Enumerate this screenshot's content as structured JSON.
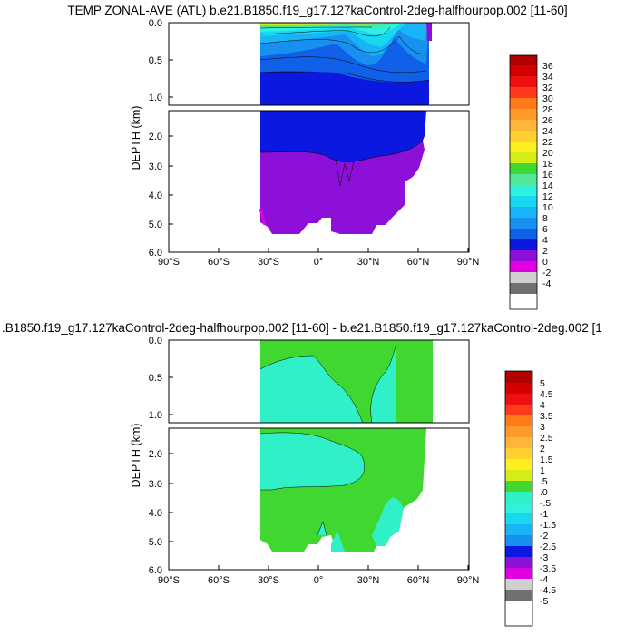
{
  "chart_data": [
    {
      "type": "contour",
      "title": "TEMP ZONAL-AVE (ATL) b.e21.B1850.f19_g17.127kaControl-2deg-halfhourpop.002 [11-60]",
      "ylabel": "DEPTH (km)",
      "x_ticks": [
        "90°S",
        "60°S",
        "30°S",
        "0°",
        "30°N",
        "60°N",
        "90°N"
      ],
      "xlim": [
        -90,
        90
      ],
      "y_ticks_upper": [
        "0.0",
        "0.5",
        "1.0"
      ],
      "y_ticks_lower": [
        "2.0",
        "3.0",
        "4.0",
        "5.0",
        "6.0"
      ],
      "ylim_upper_km": [
        0,
        1.1
      ],
      "ylim_lower_km": [
        1.1,
        6.0
      ],
      "colorbar_labels": [
        "36",
        "34",
        "32",
        "30",
        "28",
        "26",
        "24",
        "22",
        "20",
        "18",
        "16",
        "14",
        "12",
        "10",
        "8",
        "6",
        "4",
        "2",
        "0",
        "-2",
        "-4"
      ],
      "colorbar_colors": [
        "#b00000",
        "#d40000",
        "#ee1010",
        "#ff3a1a",
        "#ff7a18",
        "#ff9a2a",
        "#ffb43a",
        "#ffd030",
        "#ffee20",
        "#d4ec18",
        "#40d830",
        "#50e898",
        "#30f0e0",
        "#18d8f0",
        "#18b4f8",
        "#1890f0",
        "#1060e8",
        "#0a18e0",
        "#8c10d8",
        "#e000e0",
        "#d0d0d0",
        "#707070",
        "#ffffff"
      ]
    },
    {
      "type": "contour",
      "title": ".B1850.f19_g17.127kaControl-2deg-halfhourpop.002 [11-60] - b.e21.B1850.f19_g17.127kaControl-2deg.002 [1",
      "ylabel": "DEPTH (km)",
      "x_ticks": [
        "90°S",
        "60°S",
        "30°S",
        "0°",
        "30°N",
        "60°N",
        "90°N"
      ],
      "xlim": [
        -90,
        90
      ],
      "y_ticks_upper": [
        "0.0",
        "0.5",
        "1.0"
      ],
      "y_ticks_lower": [
        "2.0",
        "3.0",
        "4.0",
        "5.0",
        "6.0"
      ],
      "ylim_upper_km": [
        0,
        1.1
      ],
      "ylim_lower_km": [
        1.1,
        6.0
      ],
      "colorbar_labels": [
        "5",
        "4.5",
        "4",
        "3.5",
        "3",
        "2.5",
        "2",
        "1.5",
        "1",
        ".5",
        ".0",
        "-.5",
        "-1",
        "-1.5",
        "-2",
        "-2.5",
        "-3",
        "-3.5",
        "-4",
        "-4.5",
        "-5"
      ],
      "colorbar_colors": [
        "#b00000",
        "#d40000",
        "#ee1010",
        "#ff3a1a",
        "#ff7a18",
        "#ff9a2a",
        "#ffb43a",
        "#ffd030",
        "#ffee20",
        "#d4ec18",
        "#40d830",
        "#30f0c8",
        "#30f0e0",
        "#18d8f0",
        "#18b4f8",
        "#1890f0",
        "#0a18e0",
        "#8c10d8",
        "#e000e0",
        "#d0d0d0",
        "#707070",
        "#ffffff"
      ]
    }
  ]
}
